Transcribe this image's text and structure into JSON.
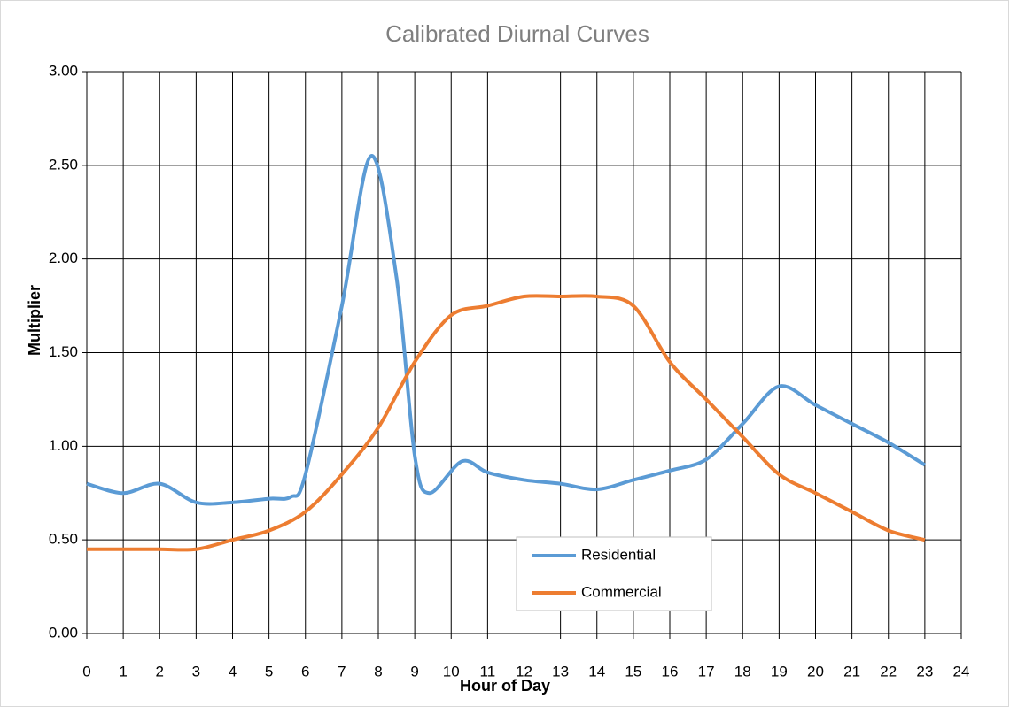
{
  "chart_data": {
    "type": "line",
    "title": "Calibrated Diurnal Curves",
    "xlabel": "Hour of Day",
    "ylabel": "Multiplier",
    "xlim": [
      0,
      24
    ],
    "xticks": [
      0,
      1,
      2,
      3,
      4,
      5,
      6,
      7,
      8,
      9,
      10,
      11,
      12,
      13,
      14,
      15,
      16,
      17,
      18,
      19,
      20,
      21,
      22,
      23,
      24
    ],
    "ylim": [
      0,
      3
    ],
    "yticks": [
      {
        "value": 0,
        "label": "0.00"
      },
      {
        "value": 0.5,
        "label": "0.50"
      },
      {
        "value": 1,
        "label": "1.00"
      },
      {
        "value": 1.5,
        "label": "1.50"
      },
      {
        "value": 2,
        "label": "2.00"
      },
      {
        "value": 2.5,
        "label": "2.50"
      },
      {
        "value": 3,
        "label": "3.00"
      }
    ],
    "grid": true,
    "legend": "bottom-center",
    "series": [
      {
        "name": "Residential",
        "color": "#5b9bd5",
        "x": [
          0,
          1,
          2,
          3,
          4,
          5,
          5.6,
          6,
          7,
          7.8,
          8.5,
          9,
          9.4,
          10.3,
          11,
          12,
          13,
          14,
          15,
          16,
          17,
          18,
          19,
          20,
          21,
          22,
          23
        ],
        "values": [
          0.8,
          0.75,
          0.8,
          0.7,
          0.7,
          0.72,
          0.73,
          0.85,
          1.75,
          2.55,
          1.9,
          0.95,
          0.75,
          0.92,
          0.86,
          0.82,
          0.8,
          0.77,
          0.82,
          0.87,
          0.93,
          1.12,
          1.32,
          1.22,
          1.12,
          1.02,
          0.9
        ]
      },
      {
        "name": "Commercial",
        "color": "#ed7d31",
        "x": [
          0,
          1,
          2,
          3,
          4,
          5,
          6,
          7,
          8,
          9,
          10,
          11,
          12,
          13,
          14,
          15,
          16,
          17,
          18,
          19,
          20,
          21,
          22,
          23
        ],
        "values": [
          0.45,
          0.45,
          0.45,
          0.45,
          0.5,
          0.55,
          0.65,
          0.85,
          1.1,
          1.45,
          1.7,
          1.75,
          1.8,
          1.8,
          1.8,
          1.75,
          1.45,
          1.25,
          1.05,
          0.85,
          0.75,
          0.65,
          0.55,
          0.5
        ]
      }
    ]
  }
}
